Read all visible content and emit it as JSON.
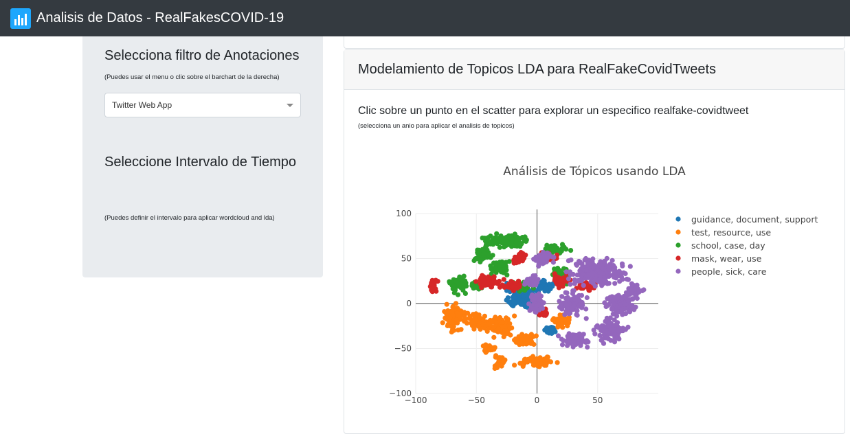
{
  "navbar": {
    "title": "Analisis de Datos - RealFakesCOVID-19",
    "logo_icon": "bar-chart-logo-icon"
  },
  "sidebar": {
    "filter_heading": "Selecciona filtro de Anotaciones",
    "filter_hint": "(Puedes usar el menu o clic sobre el barchart de la derecha)",
    "filter_select_value": "Twitter Web App",
    "time_heading": "Seleccione Intervalo de Tiempo",
    "time_hint": "(Puedes definir el intervalo para aplicar wordcloud and lda)"
  },
  "main": {
    "card_title": "Modelamiento de Topicos LDA para RealFakeCovidTweets",
    "lead": "Clic sobre un punto en el scatter para explorar un especifico realfake-covidtweet",
    "small_hint": "(selecciona un anio para aplicar el analisis de topicos)"
  },
  "chart_data": {
    "type": "scatter",
    "title": "Análisis de Tópicos usando LDA",
    "xlabel": "",
    "ylabel": "",
    "xlim": [
      -100,
      100
    ],
    "ylim": [
      -100,
      100
    ],
    "xticks": [
      "−100",
      "−50",
      "0",
      "50"
    ],
    "yticks": [
      "100",
      "50",
      "0",
      "−50",
      "−100"
    ],
    "legend_position": "right",
    "grid": true,
    "series": [
      {
        "name": "guidance,  document,  support",
        "color": "#1f77b4",
        "clusters": [
          [
            -12,
            10,
            10,
            10
          ],
          [
            5,
            20,
            6,
            6
          ],
          [
            -4,
            0,
            5,
            4
          ],
          [
            10,
            -30,
            5,
            4
          ],
          [
            -20,
            0,
            3,
            3
          ]
        ]
      },
      {
        "name": "test,  resource,  use",
        "color": "#ff7f0e",
        "clusters": [
          [
            -70,
            -15,
            6,
            12
          ],
          [
            -50,
            -20,
            8,
            8
          ],
          [
            -30,
            -25,
            8,
            10
          ],
          [
            -10,
            -40,
            8,
            6
          ],
          [
            20,
            -20,
            6,
            6
          ],
          [
            0,
            -65,
            12,
            5
          ],
          [
            -30,
            -65,
            4,
            5
          ],
          [
            -40,
            -50,
            4,
            4
          ]
        ]
      },
      {
        "name": "school,  case,  day",
        "color": "#2ca02c",
        "clusters": [
          [
            -25,
            70,
            15,
            6
          ],
          [
            -45,
            55,
            6,
            6
          ],
          [
            -65,
            20,
            6,
            8
          ],
          [
            -30,
            40,
            6,
            6
          ],
          [
            15,
            60,
            8,
            5
          ],
          [
            -10,
            20,
            6,
            5
          ],
          [
            -50,
            20,
            4,
            4
          ],
          [
            20,
            30,
            6,
            6
          ]
        ]
      },
      {
        "name": "mask,  wear,  use",
        "color": "#d62728",
        "clusters": [
          [
            -85,
            20,
            3,
            6
          ],
          [
            -40,
            25,
            8,
            6
          ],
          [
            -20,
            20,
            6,
            5
          ],
          [
            20,
            25,
            6,
            5
          ],
          [
            40,
            20,
            6,
            5
          ],
          [
            10,
            50,
            6,
            4
          ],
          [
            -15,
            50,
            5,
            5
          ],
          [
            5,
            -10,
            4,
            3
          ]
        ]
      },
      {
        "name": "people,  sick,  care",
        "color": "#9467bd",
        "clusters": [
          [
            50,
            35,
            18,
            12
          ],
          [
            30,
            0,
            8,
            12
          ],
          [
            70,
            0,
            10,
            10
          ],
          [
            60,
            -30,
            10,
            10
          ],
          [
            30,
            -40,
            10,
            6
          ],
          [
            5,
            50,
            6,
            6
          ],
          [
            0,
            0,
            5,
            8
          ],
          [
            -5,
            25,
            5,
            5
          ],
          [
            80,
            15,
            6,
            6
          ]
        ]
      }
    ]
  }
}
